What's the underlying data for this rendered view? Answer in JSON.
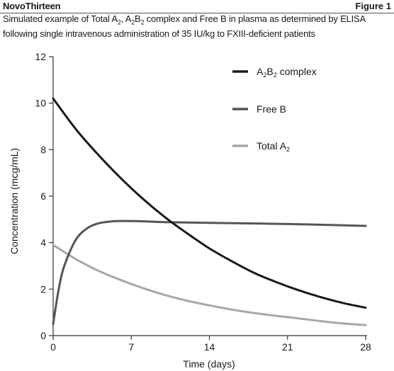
{
  "header": {
    "brand": "NovoThirteen",
    "figure_label": "Figure 1"
  },
  "caption_parts": [
    {
      "t": "Simulated example of Total A"
    },
    {
      "t": "2",
      "sub": true
    },
    {
      "t": ", A"
    },
    {
      "t": "2",
      "sub": true
    },
    {
      "t": "B"
    },
    {
      "t": "2",
      "sub": true
    },
    {
      "t": " complex and Free B in plasma as determined by ELISA following single intravenous administration of 35 IU/kg to FXIII-deficient patients"
    }
  ],
  "chart_data": {
    "type": "line",
    "xlabel": "Time (days)",
    "ylabel": "Concentration (mcg/mL)",
    "xlim": [
      0,
      28
    ],
    "ylim": [
      0,
      12
    ],
    "xticks": [
      "0",
      "7",
      "14",
      "21",
      "28"
    ],
    "yticks": [
      "0",
      "2",
      "4",
      "6",
      "8",
      "10",
      "12"
    ],
    "grid": false,
    "legend_position": "top-right",
    "series": [
      {
        "name": "A2B2 complex",
        "name_parts": [
          {
            "t": "A"
          },
          {
            "t": "2",
            "sub": true
          },
          {
            "t": "B"
          },
          {
            "t": "2",
            "sub": true
          },
          {
            "t": " complex"
          }
        ],
        "color": "#1a1a1a",
        "points": [
          [
            0,
            10.2
          ],
          [
            2,
            8.9
          ],
          [
            4,
            7.8
          ],
          [
            6,
            6.8
          ],
          [
            8,
            5.9
          ],
          [
            10,
            5.1
          ],
          [
            12,
            4.4
          ],
          [
            14,
            3.75
          ],
          [
            16,
            3.2
          ],
          [
            18,
            2.7
          ],
          [
            20,
            2.3
          ],
          [
            22,
            1.95
          ],
          [
            24,
            1.65
          ],
          [
            26,
            1.4
          ],
          [
            28,
            1.2
          ]
        ]
      },
      {
        "name": "Free B",
        "name_parts": [
          {
            "t": "Free B"
          }
        ],
        "color": "#555555",
        "points": [
          [
            0,
            0.5
          ],
          [
            0.5,
            2.0
          ],
          [
            1,
            3.0
          ],
          [
            2,
            4.1
          ],
          [
            3,
            4.6
          ],
          [
            4,
            4.82
          ],
          [
            5,
            4.9
          ],
          [
            6,
            4.93
          ],
          [
            8,
            4.92
          ],
          [
            10,
            4.88
          ],
          [
            14,
            4.85
          ],
          [
            21,
            4.8
          ],
          [
            28,
            4.72
          ]
        ]
      },
      {
        "name": "Total A2",
        "name_parts": [
          {
            "t": "Total A"
          },
          {
            "t": "2",
            "sub": true
          }
        ],
        "color": "#a8a8a8",
        "points": [
          [
            0,
            3.9
          ],
          [
            2,
            3.3
          ],
          [
            4,
            2.8
          ],
          [
            6,
            2.4
          ],
          [
            8,
            2.05
          ],
          [
            10,
            1.75
          ],
          [
            12,
            1.5
          ],
          [
            14,
            1.3
          ],
          [
            16,
            1.12
          ],
          [
            18,
            0.97
          ],
          [
            20,
            0.85
          ],
          [
            22,
            0.74
          ],
          [
            24,
            0.62
          ],
          [
            26,
            0.52
          ],
          [
            28,
            0.45
          ]
        ]
      }
    ]
  }
}
